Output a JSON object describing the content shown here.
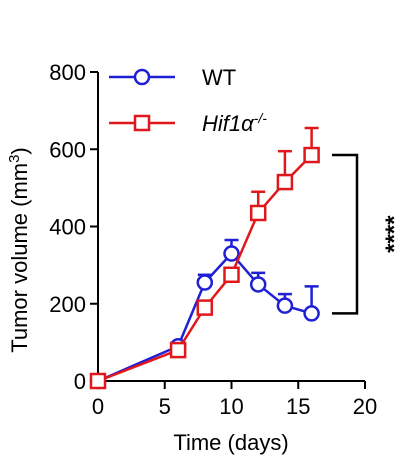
{
  "chart_data": {
    "type": "line",
    "xlabel": "Time (days)",
    "ylabel": {
      "prefix": "Tumor volume (mm",
      "sup": "3",
      "suffix": ")"
    },
    "xlim": [
      0,
      20
    ],
    "ylim": [
      0,
      800
    ],
    "xticks": [
      0,
      5,
      10,
      15,
      20
    ],
    "yticks": [
      0,
      200,
      400,
      600,
      800
    ],
    "grid": false,
    "legend_position": "top-left",
    "series": [
      {
        "name": "WT",
        "name_italic": false,
        "name_sup": "",
        "marker": "circle",
        "color": "#1f1fd6",
        "x": [
          0,
          6,
          8,
          10,
          12,
          14,
          16
        ],
        "y": [
          0,
          90,
          255,
          330,
          250,
          195,
          175
        ],
        "err": [
          0,
          0,
          20,
          35,
          30,
          30,
          70
        ]
      },
      {
        "name": "Hif1α",
        "name_italic": true,
        "name_sup": "-/-",
        "marker": "square",
        "color": "#e0181b",
        "x": [
          0,
          6,
          8,
          10,
          12,
          14,
          16
        ],
        "y": [
          0,
          80,
          190,
          275,
          435,
          515,
          585
        ],
        "err": [
          0,
          0,
          0,
          0,
          55,
          80,
          70
        ]
      }
    ],
    "annotations": [
      {
        "text": "****",
        "type": "significance-bracket",
        "y_range": [
          175,
          585
        ]
      }
    ]
  }
}
